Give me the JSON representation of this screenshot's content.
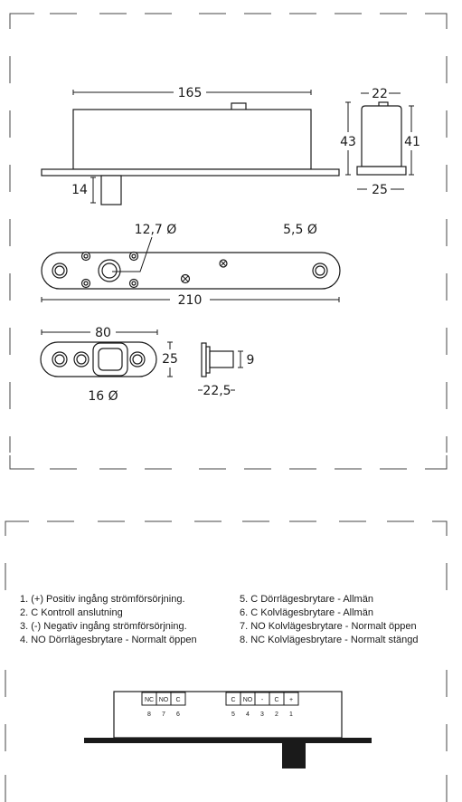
{
  "dimensions": {
    "lock_length": "165",
    "width_top": "22",
    "height_left": "43",
    "height_right": "41",
    "width_bottom": "25",
    "bolt_length": "14",
    "hole_big": "12,7 Ø",
    "hole_small": "5,5 Ø",
    "plate_length": "210",
    "strike_length": "80",
    "strike_height": "25",
    "strike_hole": "16 Ø",
    "side_height": "9",
    "side_width": "22,5"
  },
  "legend": {
    "left": [
      "1. (+) Positiv ingång strömförsörjning.",
      "2. C Kontroll anslutning",
      "3. (-) Negativ ingång strömförsörjning.",
      "4. NO Dörrlägesbrytare - Normalt öppen"
    ],
    "right": [
      "5. C Dörrlägesbrytare - Allmän",
      "6. C Kolvlägesbrytare - Allmän",
      "7. NO Kolvlägesbrytare - Normalt öppen",
      "8. NC Kolvlägesbrytare - Normalt stängd"
    ]
  },
  "terminals": {
    "left_labels": [
      "NC",
      "NO",
      "C"
    ],
    "left_numbers": [
      "8",
      "7",
      "6"
    ],
    "right_labels": [
      "C",
      "NO",
      "-",
      "C",
      "+"
    ],
    "right_numbers": [
      "5",
      "4",
      "3",
      "2",
      "1"
    ]
  }
}
